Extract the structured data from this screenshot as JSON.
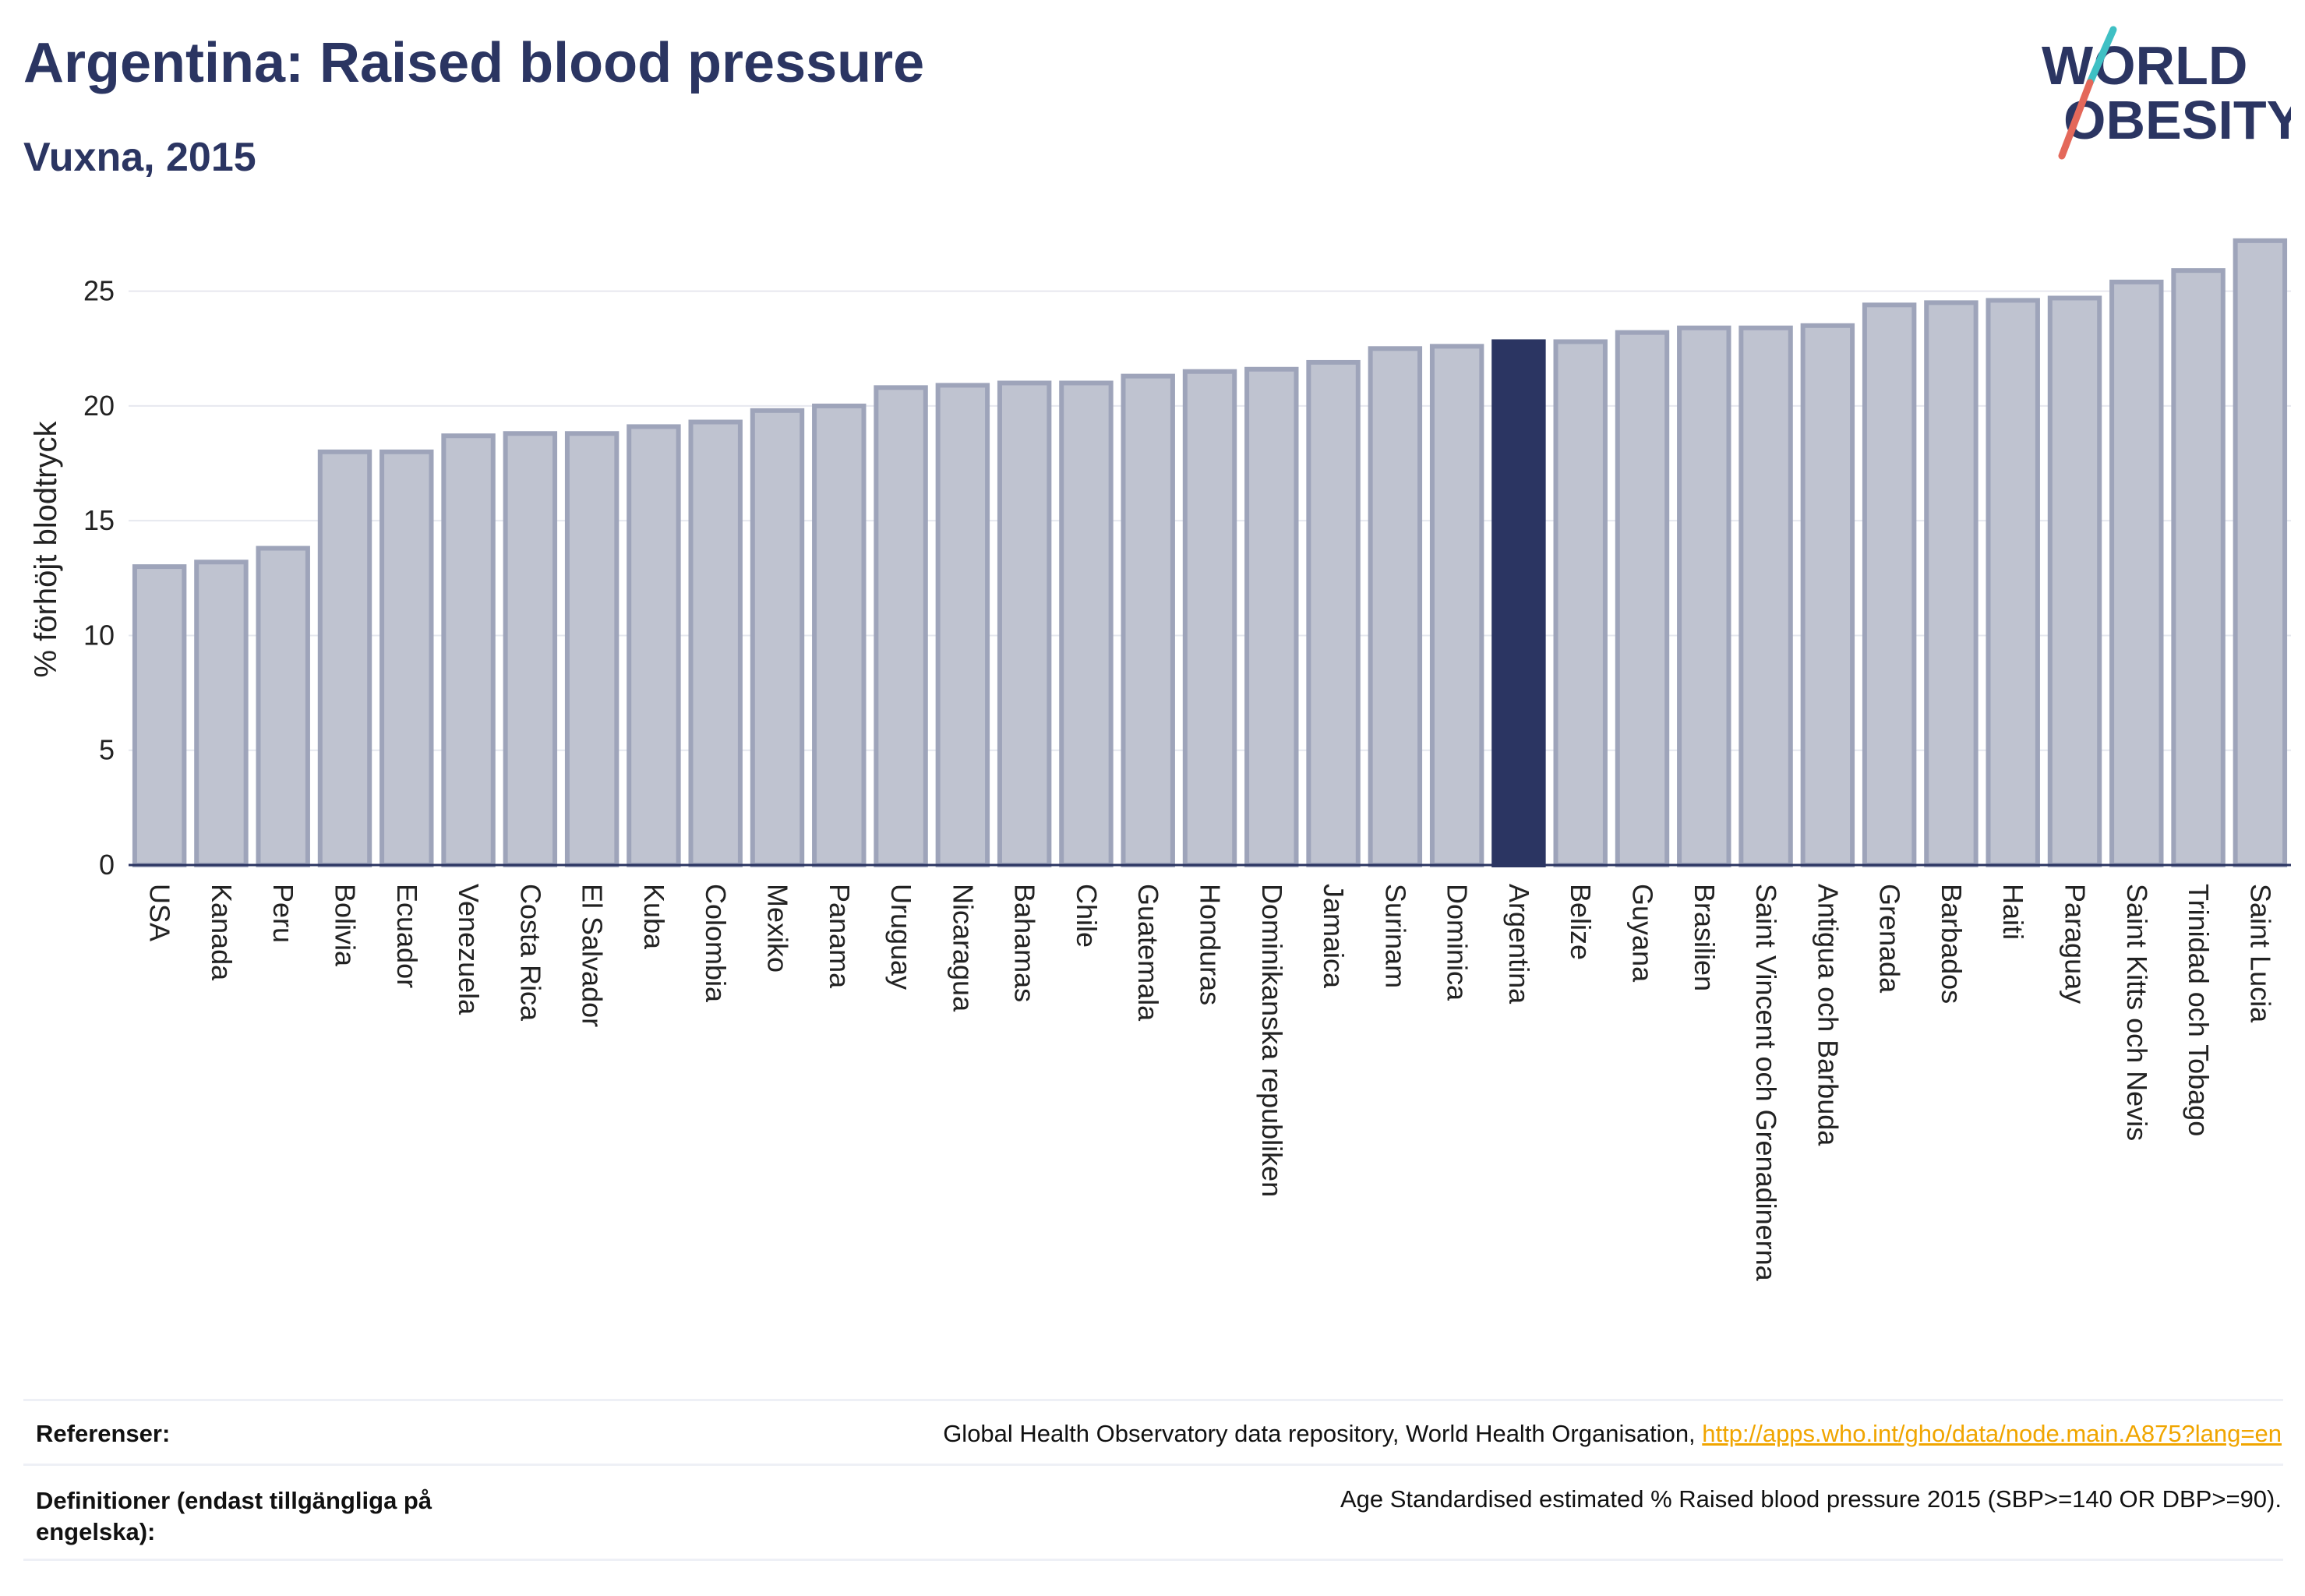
{
  "header": {
    "title": "Argentina: Raised blood pressure",
    "subtitle": "Vuxna, 2015"
  },
  "logo": {
    "line1": "WORLD",
    "line2": "OBESITY"
  },
  "chart_data": {
    "type": "bar",
    "ylabel": "% förhöjt blodtryck",
    "ylim": [
      0,
      27.5
    ],
    "yticks": [
      0,
      5,
      10,
      15,
      20,
      25
    ],
    "grid": true,
    "highlight": "Argentina",
    "colors": {
      "bar": "#bfc3d0",
      "bar_edge": "#9ea4ba",
      "highlight": "#2b3562",
      "grid": "#e6e8ef",
      "axis": "#2b3562"
    },
    "categories": [
      "USA",
      "Kanada",
      "Peru",
      "Bolivia",
      "Ecuador",
      "Venezuela",
      "Costa Rica",
      "El Salvador",
      "Kuba",
      "Colombia",
      "Mexiko",
      "Panama",
      "Uruguay",
      "Nicaragua",
      "Bahamas",
      "Chile",
      "Guatemala",
      "Honduras",
      "Dominikanska republiken",
      "Jamaica",
      "Surinam",
      "Dominica",
      "Argentina",
      "Belize",
      "Guyana",
      "Brasilien",
      "Saint Vincent och Grenadinerna",
      "Antigua och Barbuda",
      "Grenada",
      "Barbados",
      "Haiti",
      "Paraguay",
      "Saint Kitts och Nevis",
      "Trinidad och Tobago",
      "Saint Lucia"
    ],
    "values": [
      13.0,
      13.2,
      13.8,
      18.0,
      18.0,
      18.7,
      18.8,
      18.8,
      19.1,
      19.3,
      19.8,
      20.0,
      20.8,
      20.9,
      21.0,
      21.0,
      21.3,
      21.5,
      21.6,
      21.9,
      22.5,
      22.6,
      22.8,
      22.8,
      23.2,
      23.4,
      23.4,
      23.5,
      24.4,
      24.5,
      24.6,
      24.7,
      25.4,
      25.9,
      27.2
    ]
  },
  "footer": {
    "references_label": "Referenser:",
    "references_text": "Global Health Observatory data repository, World Health Organisation, ",
    "references_link": "http://apps.who.int/gho/data/node.main.A875?lang=en",
    "definitions_label": "Definitioner (endast tillgängliga på engelska):",
    "definitions_text": "Age Standardised estimated % Raised blood pressure 2015 (SBP>=140 OR DBP>=90)."
  }
}
